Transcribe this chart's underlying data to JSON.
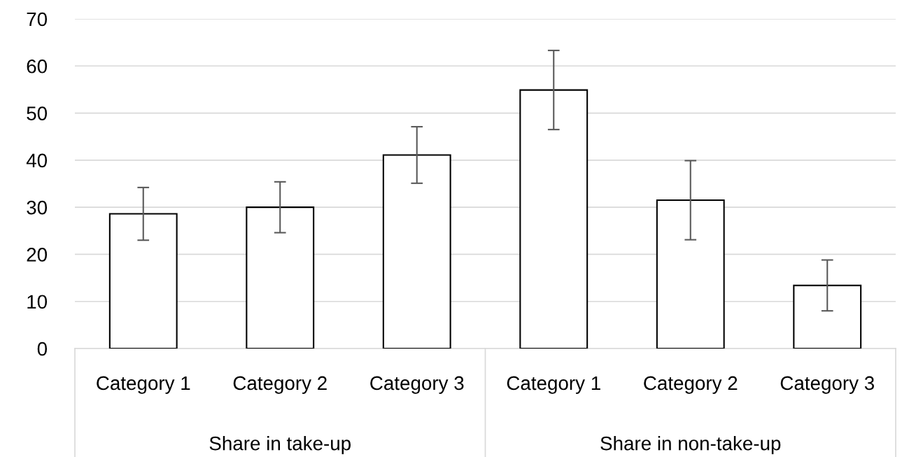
{
  "chart_data": {
    "type": "bar",
    "categories": [
      "Category 1",
      "Category 2",
      "Category 3",
      "Category 1",
      "Category 2",
      "Category 3"
    ],
    "values": [
      28.6,
      30.0,
      41.1,
      54.9,
      31.5,
      13.4
    ],
    "errors": [
      5.6,
      5.4,
      6.0,
      8.4,
      8.4,
      5.4
    ],
    "color": "#ffffff",
    "ylim": [
      0,
      70
    ],
    "yticks": [
      0,
      10,
      20,
      30,
      40,
      50,
      60,
      70
    ],
    "grid": "y",
    "annotations": [
      "Share in take-up",
      "Share in non-take-up"
    ]
  }
}
